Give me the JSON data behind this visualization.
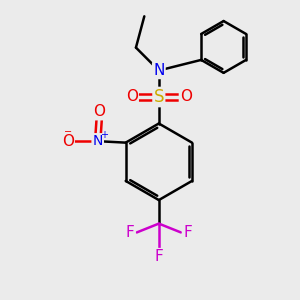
{
  "bg_color": "#ebebeb",
  "bond_color": "#000000",
  "bond_width": 1.8,
  "colors": {
    "N": "#0000ee",
    "O": "#ee0000",
    "S": "#ccaa00",
    "F": "#cc00cc",
    "C": "#000000"
  },
  "font_size": 11,
  "fig_size": [
    3.0,
    3.0
  ],
  "dpi": 100,
  "xlim": [
    0,
    10
  ],
  "ylim": [
    0,
    10
  ]
}
